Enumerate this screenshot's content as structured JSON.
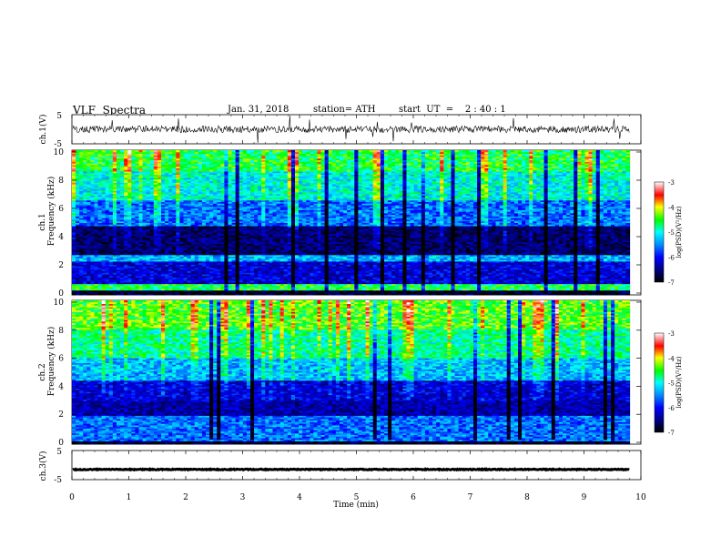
{
  "header": {
    "title": "VLF  Spectra",
    "date": "Jan. 31, 2018",
    "station": "station= ATH",
    "start_ut": "start  UT  =    2 : 40 : 1"
  },
  "chart_data": [
    {
      "type": "line",
      "panel": "ch1-waveform",
      "ylabel": "ch.1(V)",
      "ylim": [
        -5,
        5
      ],
      "yticks": [
        "5",
        "-5"
      ],
      "xlim": [
        0,
        10
      ],
      "series": [
        {
          "values_note": "dense waveform, baseline near 0 V",
          "baseline": 0,
          "amplitude": 1.2
        }
      ]
    },
    {
      "type": "heatmap",
      "panel": "ch1-spectrogram",
      "ylabel_lines": [
        "ch.1",
        "Frequency  (kHz)"
      ],
      "ylim": [
        0,
        10
      ],
      "yticks": [
        "0",
        "2",
        "4",
        "6",
        "8",
        "10"
      ],
      "xlim": [
        0,
        9.8
      ],
      "colorbar": {
        "label": "log(PSD)(V²/Hz)",
        "ticks": [
          "-3",
          "-4",
          "-5",
          "-6",
          "-7"
        ],
        "range": [
          -7,
          -3
        ]
      },
      "bands": [
        {
          "f_min": 0.0,
          "f_max": 0.3,
          "level": -7.0
        },
        {
          "f_min": 0.3,
          "f_max": 0.7,
          "level": -4.6
        },
        {
          "f_min": 0.7,
          "f_max": 2.3,
          "level": -6.2
        },
        {
          "f_min": 2.3,
          "f_max": 2.7,
          "level": -5.3
        },
        {
          "f_min": 2.7,
          "f_max": 4.7,
          "level": -6.7
        },
        {
          "f_min": 4.7,
          "f_max": 6.5,
          "level": -5.6
        },
        {
          "f_min": 6.5,
          "f_max": 8.5,
          "level": -5.0
        },
        {
          "f_min": 8.5,
          "f_max": 10.0,
          "level": -4.6
        }
      ]
    },
    {
      "type": "heatmap",
      "panel": "ch2-spectrogram",
      "ylabel_lines": [
        "ch.2",
        "Frequency  (kHz)"
      ],
      "ylim": [
        0,
        10
      ],
      "yticks": [
        "0",
        "2",
        "4",
        "6",
        "8",
        "10"
      ],
      "xlim": [
        0,
        9.8
      ],
      "colorbar": {
        "label": "log(PSD)(V²/Hz)",
        "ticks": [
          "-3",
          "-4",
          "-5",
          "-6",
          "-7"
        ],
        "range": [
          -7,
          -3
        ]
      },
      "bands": [
        {
          "f_min": 0.0,
          "f_max": 0.2,
          "level": -7.0
        },
        {
          "f_min": 0.2,
          "f_max": 2.0,
          "level": -5.6
        },
        {
          "f_min": 2.0,
          "f_max": 3.0,
          "level": -6.4
        },
        {
          "f_min": 3.0,
          "f_max": 4.4,
          "level": -6.2
        },
        {
          "f_min": 4.4,
          "f_max": 6.0,
          "level": -5.3
        },
        {
          "f_min": 6.0,
          "f_max": 8.0,
          "level": -4.8
        },
        {
          "f_min": 8.0,
          "f_max": 10.0,
          "level": -4.4
        }
      ]
    },
    {
      "type": "line",
      "panel": "ch3-waveform",
      "ylabel": "ch.3(V)",
      "ylim": [
        -5,
        5
      ],
      "yticks": [
        "5",
        "-5"
      ],
      "xlim": [
        0,
        10
      ],
      "series": [
        {
          "values_note": "near-constant level",
          "baseline": -1.5,
          "amplitude": 0.15
        }
      ]
    }
  ],
  "x_axis": {
    "label": "Time  (min)",
    "ticks": [
      "0",
      "1",
      "2",
      "3",
      "4",
      "5",
      "6",
      "7",
      "8",
      "9",
      "10"
    ],
    "range": [
      0,
      10
    ]
  }
}
